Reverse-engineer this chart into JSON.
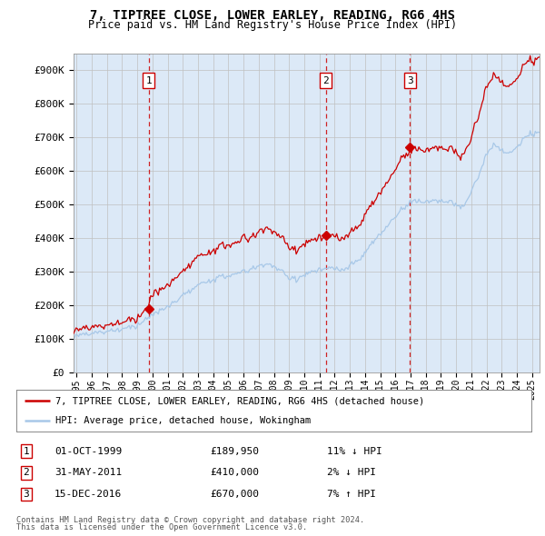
{
  "title1": "7, TIPTREE CLOSE, LOWER EARLEY, READING, RG6 4HS",
  "title2": "Price paid vs. HM Land Registry's House Price Index (HPI)",
  "ylabel_ticks": [
    "£0",
    "£100K",
    "£200K",
    "£300K",
    "£400K",
    "£500K",
    "£600K",
    "£700K",
    "£800K",
    "£900K"
  ],
  "ytick_values": [
    0,
    100000,
    200000,
    300000,
    400000,
    500000,
    600000,
    700000,
    800000,
    900000
  ],
  "ylim": [
    0,
    950000
  ],
  "xlim_start": 1994.8,
  "xlim_end": 2025.5,
  "xticks": [
    1995,
    1996,
    1997,
    1998,
    1999,
    2000,
    2001,
    2002,
    2003,
    2004,
    2005,
    2006,
    2007,
    2008,
    2009,
    2010,
    2011,
    2012,
    2013,
    2014,
    2015,
    2016,
    2017,
    2018,
    2019,
    2020,
    2021,
    2022,
    2023,
    2024,
    2025
  ],
  "sale_dates": [
    1999.75,
    2011.42,
    2016.96
  ],
  "sale_prices": [
    189950,
    410000,
    670000
  ],
  "sale_labels": [
    "1",
    "2",
    "3"
  ],
  "hpi_line_color": "#a8c8e8",
  "price_line_color": "#cc0000",
  "vline_color": "#cc0000",
  "legend_label_red": "7, TIPTREE CLOSE, LOWER EARLEY, READING, RG6 4HS (detached house)",
  "legend_label_blue": "HPI: Average price, detached house, Wokingham",
  "table_rows": [
    [
      "1",
      "01-OCT-1999",
      "£189,950",
      "11% ↓ HPI"
    ],
    [
      "2",
      "31-MAY-2011",
      "£410,000",
      "2% ↓ HPI"
    ],
    [
      "3",
      "15-DEC-2016",
      "£670,000",
      "7% ↑ HPI"
    ]
  ],
  "footnote1": "Contains HM Land Registry data © Crown copyright and database right 2024.",
  "footnote2": "This data is licensed under the Open Government Licence v3.0.",
  "plot_bg": "#dce9f7"
}
